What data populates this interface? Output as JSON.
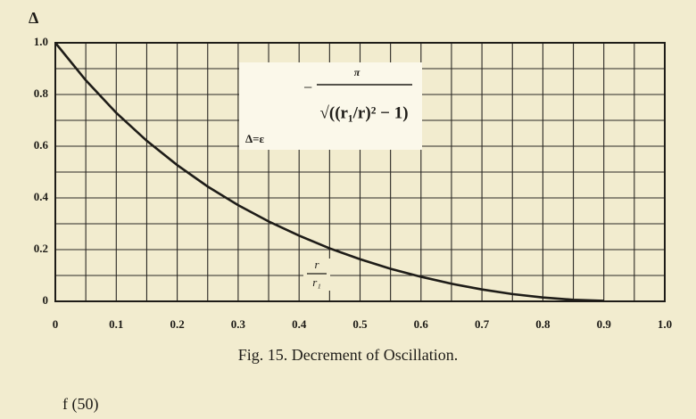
{
  "chart_data": {
    "type": "line",
    "ylabel": "Δ",
    "xlabel": {
      "numerator": "r",
      "denominator": "r₁"
    },
    "annotation": {
      "lhs": "Δ=ε",
      "sign": "−",
      "numerator": "π",
      "denominator": "√((r₁/r)² − 1)"
    },
    "caption": "Fig. 15.   Decrement of Oscillation.",
    "footer": "f      (50)",
    "x": [
      0,
      0.05,
      0.1,
      0.15,
      0.2,
      0.25,
      0.3,
      0.35,
      0.4,
      0.45,
      0.5,
      0.55,
      0.6,
      0.65,
      0.7,
      0.75,
      0.8,
      0.85,
      0.9
    ],
    "values": [
      1,
      0.855,
      0.729,
      0.621,
      0.527,
      0.444,
      0.372,
      0.309,
      0.254,
      0.205,
      0.163,
      0.126,
      0.095,
      0.068,
      0.046,
      0.028,
      0.015,
      0.006,
      0.002
    ],
    "color": "#1e1c18",
    "xlim": [
      0,
      1
    ],
    "ylim": [
      0,
      1
    ],
    "xticks": [
      0,
      0.1,
      0.2,
      0.3,
      0.4,
      0.5,
      0.6,
      0.7,
      0.8,
      0.9,
      {
        "value": 1,
        "label": "1.0"
      }
    ],
    "yticks": [
      0,
      0.2,
      0.4,
      0.6,
      0.8,
      {
        "value": 1,
        "label": "1.0"
      }
    ],
    "grid": true
  }
}
